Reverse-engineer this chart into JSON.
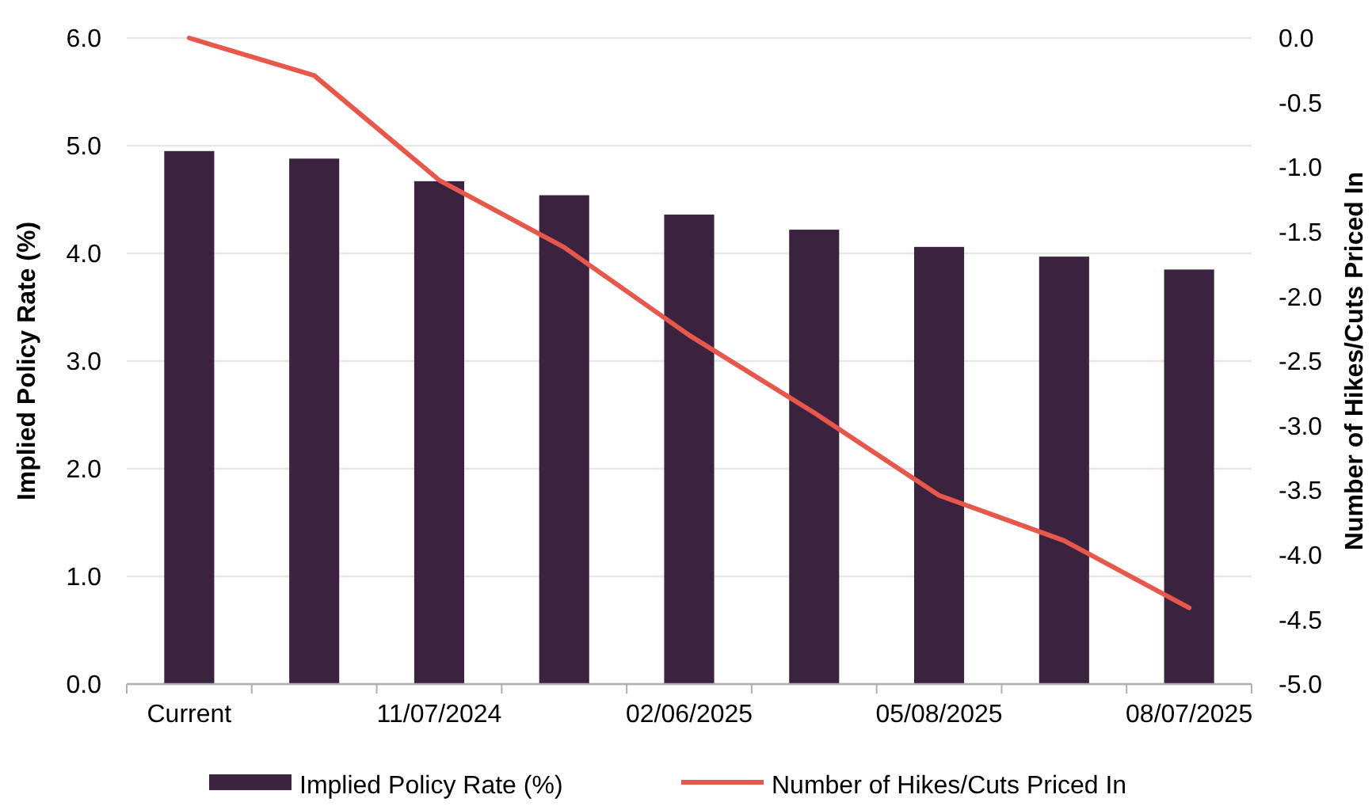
{
  "chart_data": {
    "type": "bar",
    "categories": [
      "Current",
      null,
      "11/07/2024",
      null,
      "02/06/2025",
      null,
      "05/08/2025",
      null,
      "08/07/2025"
    ],
    "ylabel": "Implied Policy Rate (%)",
    "y2label": "Number of Hikes/Cuts Priced In",
    "ylim": [
      0,
      6
    ],
    "yticks": [
      {
        "value": 0,
        "label": "0.0"
      },
      {
        "value": 1,
        "label": "1.0"
      },
      {
        "value": 2,
        "label": "2.0"
      },
      {
        "value": 3,
        "label": "3.0"
      },
      {
        "value": 4,
        "label": "4.0"
      },
      {
        "value": 5,
        "label": "5.0"
      },
      {
        "value": 6,
        "label": "6.0"
      }
    ],
    "y2lim": [
      -5,
      0
    ],
    "y2ticks": [
      {
        "value": -5,
        "label": "-5.0"
      },
      {
        "value": -4.5,
        "label": "-4.5"
      },
      {
        "value": -4,
        "label": "-4.0"
      },
      {
        "value": -3.5,
        "label": "-3.5"
      },
      {
        "value": -3,
        "label": "-3.0"
      },
      {
        "value": -2.5,
        "label": "-2.5"
      },
      {
        "value": -2,
        "label": "-2.0"
      },
      {
        "value": -1.5,
        "label": "-1.5"
      },
      {
        "value": -1,
        "label": "-1.0"
      },
      {
        "value": -0.5,
        "label": "-0.5"
      },
      {
        "value": 0,
        "label": "0.0"
      }
    ],
    "grid": "y",
    "legend": "bottom",
    "series": [
      {
        "name": "Implied Policy Rate (%)",
        "color": "#3b2340",
        "values": [
          4.95,
          4.88,
          4.67,
          4.54,
          4.36,
          4.22,
          4.06,
          3.97,
          3.85
        ]
      },
      {
        "name": "Number of Hikes/Cuts Priced In",
        "type": "line",
        "axis": "y2",
        "color": "#e8584a",
        "line_style": "solid",
        "marker": "none",
        "values": [
          0,
          -0.29,
          -1.1,
          -1.62,
          -2.3,
          -2.9,
          -3.54,
          -3.89,
          -4.41
        ]
      }
    ]
  }
}
